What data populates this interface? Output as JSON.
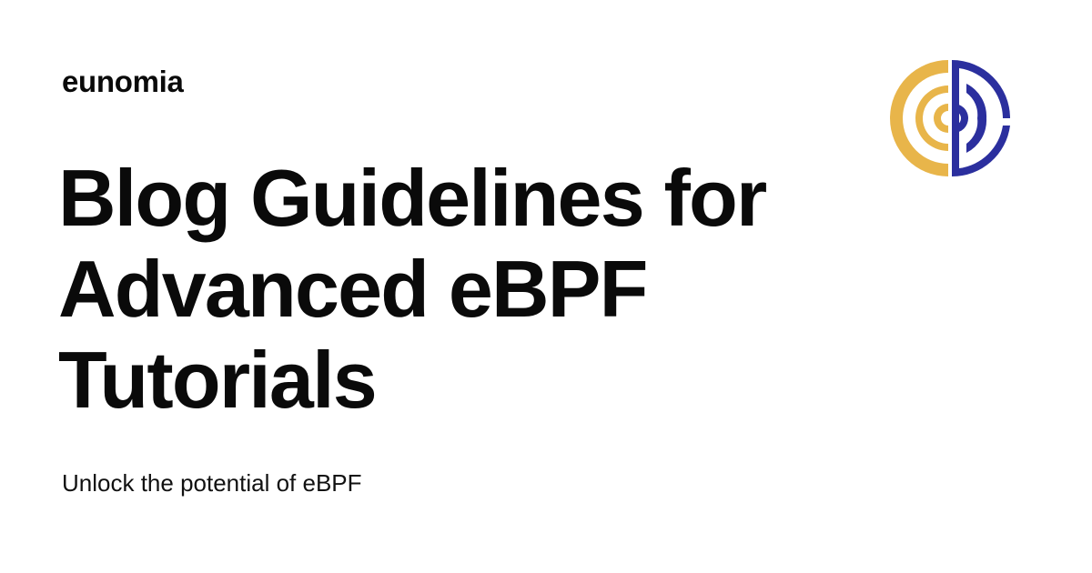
{
  "brand": {
    "name": "eunomia"
  },
  "post": {
    "title": "Blog Guidelines for Advanced eBPF Tutorials",
    "subtitle": "Unlock the potential of eBPF"
  },
  "logo": {
    "icon": "eunomia-logo-icon",
    "colors": {
      "gold": "#E8B54A",
      "navy": "#2B2F9E"
    }
  }
}
